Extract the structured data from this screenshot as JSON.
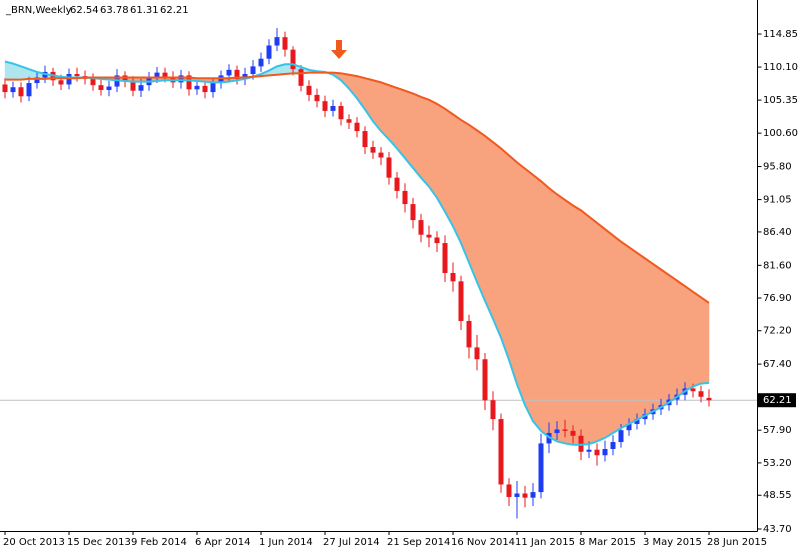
{
  "chart_data": {
    "type": "candlestick",
    "title": "_BRN,Weekly",
    "categories": [
      "20 Oct 2013",
      null,
      null,
      null,
      null,
      null,
      null,
      null,
      "15 Dec 2013",
      null,
      null,
      null,
      null,
      null,
      null,
      null,
      "9 Feb 2014",
      null,
      null,
      null,
      null,
      null,
      null,
      null,
      "6 Apr 2014",
      null,
      null,
      null,
      null,
      null,
      null,
      null,
      "1 Jun 2014",
      null,
      null,
      null,
      null,
      null,
      null,
      null,
      "27 Jul 2014",
      null,
      null,
      null,
      null,
      null,
      null,
      null,
      "21 Sep 2014",
      null,
      null,
      null,
      null,
      null,
      null,
      null,
      "16 Nov 2014",
      null,
      null,
      null,
      null,
      null,
      null,
      null,
      "11 Jan 2015",
      null,
      null,
      null,
      null,
      null,
      null,
      null,
      "8 Mar 2015",
      null,
      null,
      null,
      null,
      null,
      null,
      null,
      "3 May 2015",
      null,
      null,
      null,
      null,
      null,
      null,
      null,
      "28 Jun 2015"
    ],
    "open": [
      107.6,
      106.5,
      107.2,
      105.9,
      107.8,
      108.6,
      109.4,
      108.2,
      107.6,
      109.1,
      108.8,
      108.4,
      107.5,
      106.8,
      107.3,
      108.9,
      108.0,
      106.7,
      107.5,
      108.6,
      109.3,
      108.7,
      107.9,
      108.9,
      106.9,
      107.4,
      106.5,
      107.8,
      108.9,
      109.7,
      108.4,
      109.1,
      110.2,
      111.3,
      113.2,
      114.4,
      112.6,
      109.8,
      107.4,
      106.1,
      105.2,
      103.8,
      104.5,
      102.6,
      102.1,
      100.9,
      98.6,
      97.8,
      97.1,
      94.2,
      92.3,
      90.4,
      88.1,
      86.0,
      85.6,
      84.8,
      80.5,
      79.3,
      73.6,
      69.8,
      68.1,
      62.2,
      59.5,
      50.1,
      48.3,
      48.8,
      48.2,
      49.0,
      56.0,
      57.5,
      58.0,
      57.8,
      57.1,
      54.8,
      55.1,
      54.3,
      55.2,
      56.2,
      57.9,
      58.8,
      59.5,
      60.2,
      60.9,
      61.5,
      62.3,
      63.0,
      63.9,
      63.5,
      62.54
    ],
    "high": [
      108.5,
      108.0,
      107.9,
      108.7,
      109.5,
      110.3,
      110.0,
      109.0,
      109.9,
      110.0,
      109.6,
      109.2,
      108.3,
      108.1,
      109.8,
      109.5,
      108.8,
      108.4,
      109.4,
      110.1,
      110.0,
      109.5,
      109.7,
      109.5,
      108.2,
      108.1,
      108.6,
      109.6,
      110.5,
      110.3,
      110.0,
      111.1,
      112.2,
      114.1,
      115.7,
      115.2,
      113.1,
      110.4,
      108.2,
      107.0,
      106.0,
      105.4,
      105.1,
      103.3,
      102.9,
      101.6,
      99.5,
      98.6,
      97.9,
      95.0,
      93.4,
      91.3,
      89.0,
      87.3,
      86.5,
      85.9,
      82.0,
      80.1,
      74.5,
      71.6,
      69.0,
      63.5,
      60.3,
      51.0,
      50.6,
      49.9,
      50.3,
      57.4,
      59.0,
      59.2,
      59.4,
      58.6,
      58.0,
      56.3,
      56.0,
      56.4,
      57.2,
      58.8,
      59.6,
      60.3,
      61.0,
      61.7,
      62.4,
      63.1,
      63.9,
      64.8,
      64.6,
      64.3,
      63.78
    ],
    "low": [
      105.6,
      105.7,
      105.0,
      105.2,
      107.0,
      107.8,
      107.4,
      106.8,
      106.9,
      108.0,
      107.6,
      106.7,
      106.0,
      105.9,
      106.5,
      107.2,
      105.9,
      105.8,
      106.7,
      107.8,
      107.9,
      107.1,
      107.0,
      106.0,
      106.1,
      105.6,
      105.7,
      107.0,
      108.1,
      107.6,
      107.5,
      108.3,
      109.4,
      110.5,
      112.4,
      111.6,
      108.9,
      106.6,
      105.2,
      104.3,
      102.9,
      103.0,
      101.7,
      101.2,
      100.0,
      97.6,
      96.9,
      96.0,
      93.2,
      91.2,
      89.2,
      86.9,
      84.9,
      84.2,
      83.5,
      79.2,
      77.8,
      72.3,
      68.2,
      66.5,
      60.8,
      57.9,
      48.9,
      47.0,
      45.2,
      46.8,
      47.0,
      48.1,
      54.6,
      56.5,
      56.9,
      56.0,
      53.6,
      53.9,
      52.8,
      53.4,
      54.3,
      55.4,
      57.1,
      58.0,
      58.7,
      59.4,
      60.1,
      60.7,
      61.5,
      62.2,
      62.6,
      61.9,
      61.31
    ],
    "close": [
      106.5,
      107.2,
      105.9,
      107.8,
      108.6,
      109.4,
      108.2,
      107.6,
      109.1,
      108.8,
      108.4,
      107.5,
      106.8,
      107.3,
      108.9,
      108.0,
      106.7,
      107.5,
      108.6,
      109.3,
      108.7,
      107.9,
      108.9,
      106.9,
      107.4,
      106.5,
      107.8,
      108.9,
      109.7,
      108.4,
      109.1,
      110.2,
      111.3,
      113.2,
      114.4,
      112.6,
      109.8,
      107.4,
      106.1,
      105.2,
      103.8,
      104.5,
      102.6,
      102.1,
      100.9,
      98.6,
      97.8,
      97.1,
      94.2,
      92.3,
      90.4,
      88.1,
      86.0,
      85.6,
      84.8,
      80.5,
      79.3,
      73.6,
      69.8,
      68.1,
      62.2,
      59.5,
      50.1,
      48.3,
      48.8,
      48.2,
      49.0,
      56.0,
      57.5,
      58.0,
      57.8,
      57.1,
      54.8,
      55.1,
      54.3,
      55.2,
      56.2,
      57.9,
      58.8,
      59.5,
      60.2,
      60.9,
      61.5,
      62.3,
      63.0,
      63.9,
      63.5,
      62.7,
      62.21
    ],
    "up_color": "#1f3cf2",
    "down_color": "#e8191e",
    "lines": [
      {
        "color": "#35c3e8",
        "fill": "#aee6f0",
        "values": [
          110.9,
          110.6,
          110.2,
          109.8,
          109.4,
          109.1,
          108.9,
          108.7,
          108.6,
          108.6,
          108.6,
          108.5,
          108.4,
          108.3,
          108.2,
          108.1,
          108.0,
          108.0,
          108.0,
          108.1,
          108.2,
          108.2,
          108.2,
          108.2,
          108.1,
          108.0,
          107.9,
          107.9,
          108.0,
          108.2,
          108.4,
          108.7,
          109.1,
          109.6,
          110.2,
          110.5,
          110.5,
          110.1,
          109.7,
          109.5,
          109.4,
          109.0,
          108.2,
          107.0,
          105.6,
          104.0,
          102.3,
          100.9,
          99.7,
          98.4,
          97.0,
          95.6,
          94.2,
          92.9,
          91.3,
          89.3,
          87.2,
          84.8,
          82.0,
          79.2,
          76.5,
          73.9,
          71.2,
          68.0,
          64.5,
          61.5,
          59.2,
          57.8,
          56.9,
          56.3,
          56.0,
          55.8,
          55.8,
          55.9,
          56.3,
          56.8,
          57.5,
          58.2,
          58.8,
          59.4,
          60.0,
          60.6,
          61.2,
          61.9,
          62.7,
          63.5,
          64.2,
          64.6,
          64.7
        ]
      },
      {
        "color": "#f05a1e",
        "fill": "#f9a27e",
        "values": [
          108.3,
          108.3,
          108.3,
          108.4,
          108.4,
          108.4,
          108.5,
          108.5,
          108.5,
          108.5,
          108.6,
          108.6,
          108.6,
          108.6,
          108.6,
          108.6,
          108.6,
          108.6,
          108.6,
          108.6,
          108.6,
          108.6,
          108.6,
          108.6,
          108.5,
          108.5,
          108.5,
          108.5,
          108.5,
          108.6,
          108.6,
          108.7,
          108.8,
          108.9,
          109.0,
          109.1,
          109.2,
          109.2,
          109.3,
          109.3,
          109.3,
          109.3,
          109.2,
          109.0,
          108.8,
          108.5,
          108.2,
          107.9,
          107.5,
          107.1,
          106.7,
          106.3,
          105.8,
          105.4,
          104.8,
          104.1,
          103.3,
          102.5,
          101.8,
          101.0,
          100.2,
          99.3,
          98.4,
          97.4,
          96.4,
          95.5,
          94.6,
          93.7,
          92.7,
          91.8,
          91.0,
          90.2,
          89.5,
          88.6,
          87.7,
          86.8,
          85.9,
          85.0,
          84.2,
          83.4,
          82.6,
          81.8,
          81.0,
          80.2,
          79.4,
          78.6,
          77.8,
          77.0,
          76.2
        ]
      }
    ],
    "ylim": [
      43.41,
      119.74
    ],
    "yticks": [
      {
        "value": 114.85,
        "label": "114.85"
      },
      {
        "value": 110.1,
        "label": "110.10"
      },
      {
        "value": 105.35,
        "label": "105.35"
      },
      {
        "value": 100.6,
        "label": "100.60"
      },
      {
        "value": 95.8,
        "label": "95.80"
      },
      {
        "value": 91.05,
        "label": "91.05"
      },
      {
        "value": 86.4,
        "label": "86.40"
      },
      {
        "value": 81.6,
        "label": "81.60"
      },
      {
        "value": 76.9,
        "label": "76.90"
      },
      {
        "value": 72.2,
        "label": "72.20"
      },
      {
        "value": 67.4,
        "label": "67.40"
      },
      {
        "value": 57.9,
        "label": "57.90"
      },
      {
        "value": 53.2,
        "label": "53.20"
      },
      {
        "value": 48.55,
        "label": "48.55"
      },
      {
        "value": 43.7,
        "label": "43.70"
      }
    ]
  }
}
